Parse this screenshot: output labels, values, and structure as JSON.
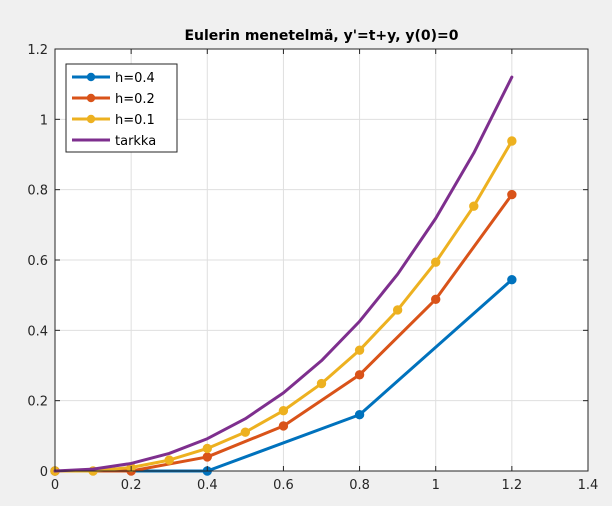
{
  "chart_data": {
    "type": "line",
    "title": "Eulerin  menetelmä, y'=t+y, y(0)=0",
    "xlabel": "",
    "ylabel": "",
    "xlim": [
      0,
      1.4
    ],
    "ylim": [
      0,
      1.2
    ],
    "xticks": [
      0,
      0.2,
      0.4,
      0.6,
      0.8,
      1,
      1.2,
      1.4
    ],
    "xtick_labels": [
      "0",
      "0.2",
      "0.4",
      "0.6",
      "0.8",
      "1",
      "1.2",
      "1.4"
    ],
    "yticks": [
      0,
      0.2,
      0.4,
      0.6,
      0.8,
      1,
      1.2
    ],
    "ytick_labels": [
      "0",
      "0.2",
      "0.4",
      "0.6",
      "0.8",
      "1",
      "1.2"
    ],
    "grid": true,
    "legend_position": "top-left",
    "series": [
      {
        "name": "h=0.4",
        "color": "#0072bd",
        "markers": true,
        "x": [
          0,
          0.4,
          0.8,
          1.2
        ],
        "y": [
          0,
          0,
          0.16,
          0.544
        ]
      },
      {
        "name": "h=0.2",
        "color": "#d95319",
        "markers": true,
        "x": [
          0,
          0.2,
          0.4,
          0.6,
          0.8,
          1.0,
          1.2
        ],
        "y": [
          0,
          0,
          0.04,
          0.128,
          0.2736,
          0.4883,
          0.786
        ]
      },
      {
        "name": "h=0.1",
        "color": "#edb120",
        "markers": true,
        "x": [
          0,
          0.1,
          0.2,
          0.3,
          0.4,
          0.5,
          0.6,
          0.7,
          0.8,
          0.9,
          1.0,
          1.1,
          1.2
        ],
        "y": [
          0,
          0,
          0.01,
          0.031,
          0.0641,
          0.1105,
          0.1716,
          0.2487,
          0.3436,
          0.4579,
          0.5937,
          0.7531,
          0.9384
        ]
      },
      {
        "name": "tarkka",
        "color": "#7e2f8e",
        "markers": false,
        "function": "e^t - t - 1",
        "x": [
          0,
          0.1,
          0.2,
          0.3,
          0.4,
          0.5,
          0.6,
          0.7,
          0.8,
          0.9,
          1.0,
          1.1,
          1.2
        ],
        "y": [
          0,
          0.0052,
          0.0214,
          0.0499,
          0.0918,
          0.1487,
          0.2221,
          0.3138,
          0.4255,
          0.5596,
          0.7183,
          0.9042,
          1.1201
        ]
      }
    ]
  }
}
